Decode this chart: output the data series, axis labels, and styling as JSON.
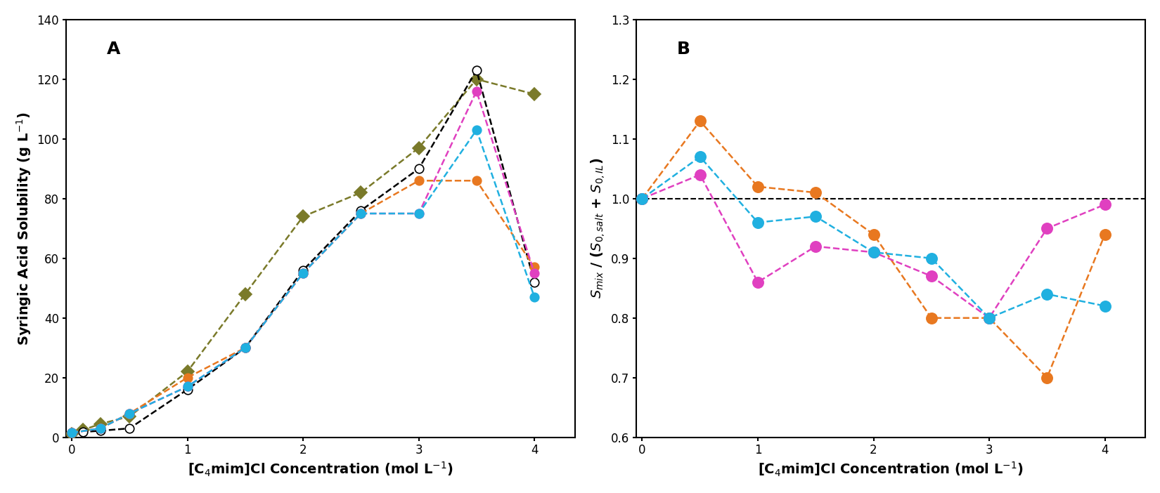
{
  "panel_A": {
    "label": "A",
    "xlabel": "[C$_4$mim]Cl Concentration (mol L$^{-1}$)",
    "ylabel": "Syringic Acid Solubility (g L$^{-1}$)",
    "xlim": [
      -0.05,
      4.35
    ],
    "ylim": [
      0,
      140
    ],
    "yticks": [
      0,
      20,
      40,
      60,
      80,
      100,
      120,
      140
    ],
    "xticks": [
      0,
      1,
      2,
      3,
      4
    ],
    "series": {
      "black_circle": {
        "x": [
          0,
          0.1,
          0.25,
          0.5,
          1.0,
          1.5,
          2.0,
          2.5,
          3.0,
          3.5,
          4.0
        ],
        "y": [
          1.5,
          1.8,
          2.2,
          3.0,
          16.0,
          30.0,
          56.0,
          76.0,
          90.0,
          123.0,
          52.0
        ],
        "color": "#000000",
        "marker": "o",
        "markerfacecolor": "white",
        "markeredgecolor": "black",
        "markersize": 9,
        "linestyle": "--",
        "linewidth": 1.8,
        "zorder": 4
      },
      "olive_diamond": {
        "x": [
          0,
          0.1,
          0.25,
          0.5,
          1.0,
          1.5,
          2.0,
          2.5,
          3.0,
          3.5,
          4.0
        ],
        "y": [
          1.0,
          2.5,
          4.5,
          7.0,
          22.0,
          48.0,
          74.0,
          82.0,
          97.0,
          120.0,
          115.0
        ],
        "color": "#7a7a2a",
        "marker": "D",
        "markerfacecolor": "#7a7a2a",
        "markeredgecolor": "#7a7a2a",
        "markersize": 9,
        "linestyle": "--",
        "linewidth": 1.8,
        "zorder": 3
      },
      "orange_circle": {
        "x": [
          0,
          0.25,
          0.5,
          1.0,
          1.5,
          2.0,
          2.5,
          3.0,
          3.5,
          4.0
        ],
        "y": [
          1.5,
          3.0,
          8.0,
          20.0,
          30.0,
          55.0,
          75.0,
          86.0,
          86.0,
          57.0
        ],
        "color": "#E87820",
        "marker": "o",
        "markerfacecolor": "#E87820",
        "markeredgecolor": "#E87820",
        "markersize": 9,
        "linestyle": "--",
        "linewidth": 1.8,
        "zorder": 5
      },
      "magenta_circle": {
        "x": [
          0,
          0.25,
          0.5,
          1.0,
          1.5,
          2.0,
          2.5,
          3.0,
          3.5,
          4.0
        ],
        "y": [
          1.5,
          3.0,
          8.0,
          17.0,
          30.0,
          55.0,
          75.0,
          75.0,
          116.0,
          55.0
        ],
        "color": "#E040C0",
        "marker": "o",
        "markerfacecolor": "#E040C0",
        "markeredgecolor": "#E040C0",
        "markersize": 9,
        "linestyle": "--",
        "linewidth": 1.8,
        "zorder": 5
      },
      "cyan_circle": {
        "x": [
          0,
          0.25,
          0.5,
          1.0,
          1.5,
          2.0,
          2.5,
          3.0,
          3.5,
          4.0
        ],
        "y": [
          1.5,
          3.0,
          8.0,
          17.0,
          30.0,
          55.0,
          75.0,
          75.0,
          103.0,
          47.0
        ],
        "color": "#20B0E0",
        "marker": "o",
        "markerfacecolor": "#20B0E0",
        "markeredgecolor": "#20B0E0",
        "markersize": 9,
        "linestyle": "--",
        "linewidth": 1.8,
        "zorder": 5
      }
    }
  },
  "panel_B": {
    "label": "B",
    "xlabel": "[C$_4$mim]Cl Concentration (mol L$^{-1}$)",
    "ylabel": "$S_{mix}$ / ($S_{0,salt}$ + $S_{0,IL}$)",
    "xlim": [
      -0.05,
      4.35
    ],
    "ylim": [
      0.6,
      1.3
    ],
    "yticks": [
      0.6,
      0.7,
      0.8,
      0.9,
      1.0,
      1.1,
      1.2,
      1.3
    ],
    "xticks": [
      0,
      1,
      2,
      3,
      4
    ],
    "hline_y": 1.0,
    "series": {
      "orange_circle": {
        "x": [
          0,
          0.5,
          1.0,
          1.5,
          2.0,
          2.5,
          3.0,
          3.5,
          4.0
        ],
        "y": [
          1.0,
          1.13,
          1.02,
          1.01,
          0.94,
          0.8,
          0.8,
          0.7,
          0.94
        ],
        "color": "#E87820",
        "marker": "o",
        "markerfacecolor": "#E87820",
        "markeredgecolor": "#E87820",
        "markersize": 11,
        "linestyle": "--",
        "linewidth": 1.8,
        "zorder": 5
      },
      "magenta_circle": {
        "x": [
          0,
          0.5,
          1.0,
          1.5,
          2.0,
          2.5,
          3.0,
          3.5,
          4.0
        ],
        "y": [
          1.0,
          1.04,
          0.86,
          0.92,
          0.91,
          0.87,
          0.8,
          0.95,
          0.99
        ],
        "color": "#E040C0",
        "marker": "o",
        "markerfacecolor": "#E040C0",
        "markeredgecolor": "#E040C0",
        "markersize": 11,
        "linestyle": "--",
        "linewidth": 1.8,
        "zorder": 5
      },
      "cyan_circle": {
        "x": [
          0,
          0.5,
          1.0,
          1.5,
          2.0,
          2.5,
          3.0,
          3.5,
          4.0
        ],
        "y": [
          1.0,
          1.07,
          0.96,
          0.97,
          0.91,
          0.9,
          0.8,
          0.84,
          0.82
        ],
        "color": "#20B0E0",
        "marker": "o",
        "markerfacecolor": "#20B0E0",
        "markeredgecolor": "#20B0E0",
        "markersize": 11,
        "linestyle": "--",
        "linewidth": 1.8,
        "zorder": 5
      }
    }
  },
  "fig_bg": "white",
  "axes_bg": "white",
  "label_fontsize": 14,
  "tick_fontsize": 12,
  "panel_label_fontsize": 18
}
